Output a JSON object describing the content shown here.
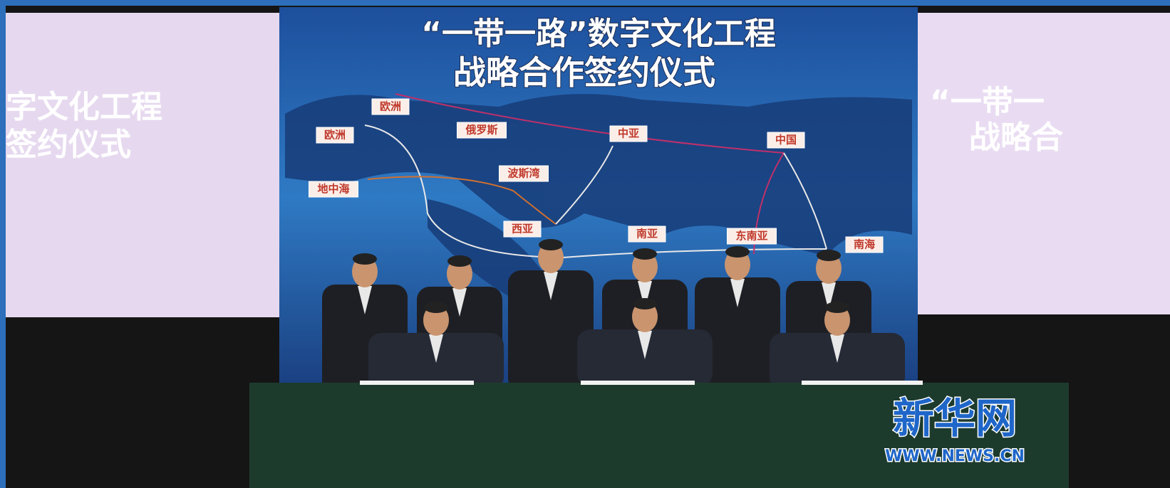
{
  "backdrop": {
    "title_line1": "“一带一路”数字文化工程",
    "title_line2": "战略合作签约仪式",
    "map_labels": [
      "欧洲",
      "欧洲",
      "俄罗斯",
      "中亚",
      "中国",
      "波斯湾",
      "地中海",
      "西亚",
      "南亚",
      "东南亚",
      "南海"
    ]
  },
  "left_screen": {
    "lines": [
      "字文化工程",
      "签约仪式"
    ]
  },
  "right_screen": {
    "lines": [
      "“一带一",
      "战略合"
    ]
  },
  "watermark": {
    "name": "新华网",
    "url": "WWW.NEWS.CN"
  }
}
